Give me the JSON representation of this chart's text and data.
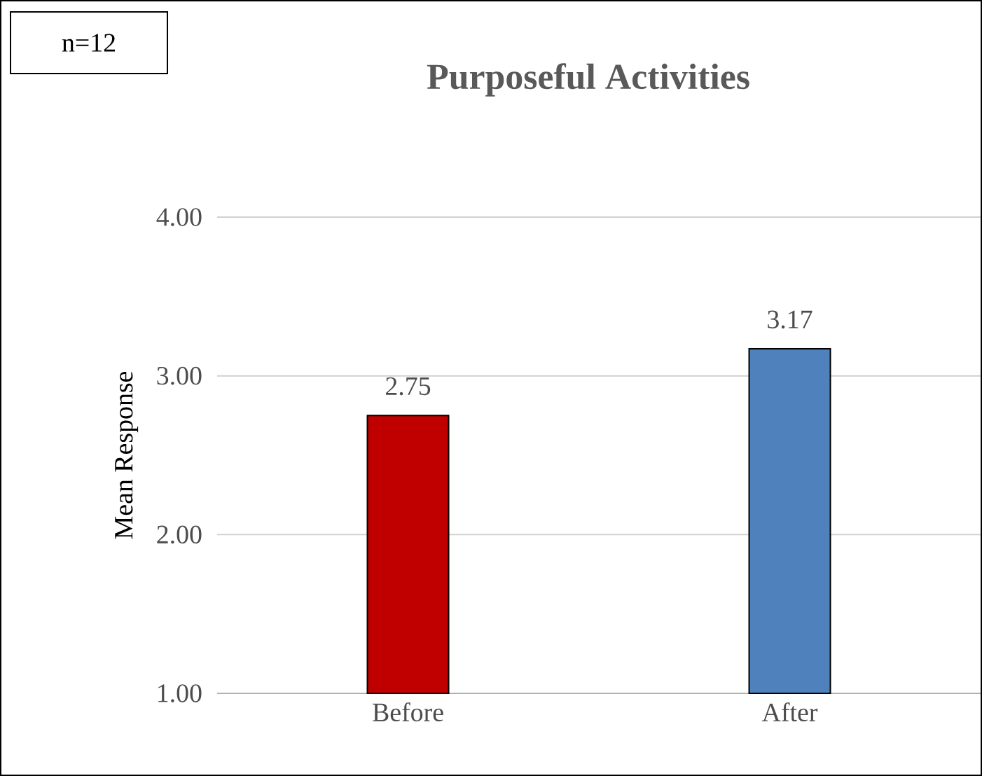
{
  "chart_data": {
    "type": "bar",
    "title": "Purposeful Activities",
    "ylabel": "Mean Response",
    "categories": [
      "Before",
      "After"
    ],
    "values": [
      2.75,
      3.17
    ],
    "colors": [
      "#c00000",
      "#4f81bd"
    ],
    "ylim": [
      1,
      4
    ],
    "yticks": [
      {
        "value": 1,
        "label": "1.00"
      },
      {
        "value": 2,
        "label": "2.00"
      },
      {
        "value": 3,
        "label": "3.00"
      },
      {
        "value": 4,
        "label": "4.00"
      }
    ],
    "grid": "y",
    "data_labels": true,
    "annotations": [
      "n=12"
    ]
  }
}
